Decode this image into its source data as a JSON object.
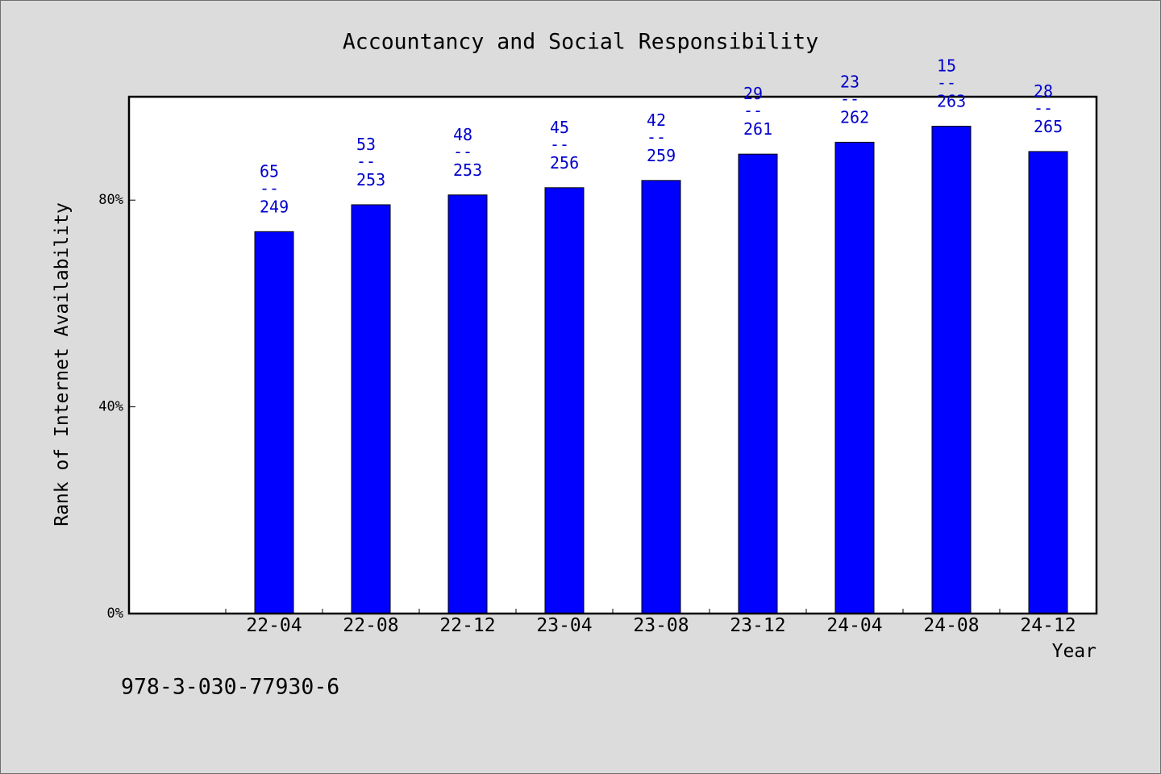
{
  "footer": {
    "isbn": "978-3-030-77930-6"
  },
  "chart_data": {
    "type": "bar",
    "title": "Accountancy and Social Responsibility",
    "xlabel": "Year",
    "ylabel": "Rank of Internet Availability",
    "categories": [
      "22-04",
      "22-08",
      "22-12",
      "23-04",
      "23-08",
      "23-12",
      "24-04",
      "24-08",
      "24-12"
    ],
    "values": [
      73.9,
      79.1,
      81.0,
      82.4,
      83.8,
      88.9,
      91.2,
      94.3,
      89.4
    ],
    "data_labels": [
      {
        "rank": "65",
        "separator": "--",
        "total": "249"
      },
      {
        "rank": "53",
        "separator": "--",
        "total": "253"
      },
      {
        "rank": "48",
        "separator": "--",
        "total": "253"
      },
      {
        "rank": "45",
        "separator": "--",
        "total": "256"
      },
      {
        "rank": "42",
        "separator": "--",
        "total": "259"
      },
      {
        "rank": "29",
        "separator": "--",
        "total": "261"
      },
      {
        "rank": "23",
        "separator": "--",
        "total": "262"
      },
      {
        "rank": "15",
        "separator": "--",
        "total": "263"
      },
      {
        "rank": "28",
        "separator": "--",
        "total": "265"
      }
    ],
    "ylim": [
      0,
      100
    ],
    "yticks": [
      0,
      40,
      80
    ],
    "ytick_labels": [
      "0%",
      "40%",
      "80%"
    ],
    "grid": false,
    "colors": {
      "bar": "#0000ff",
      "bar_edge": "#000000",
      "data_label": "#0000cc",
      "plot_background": "#ffffff",
      "figure_background": "#dcdcdc"
    }
  }
}
